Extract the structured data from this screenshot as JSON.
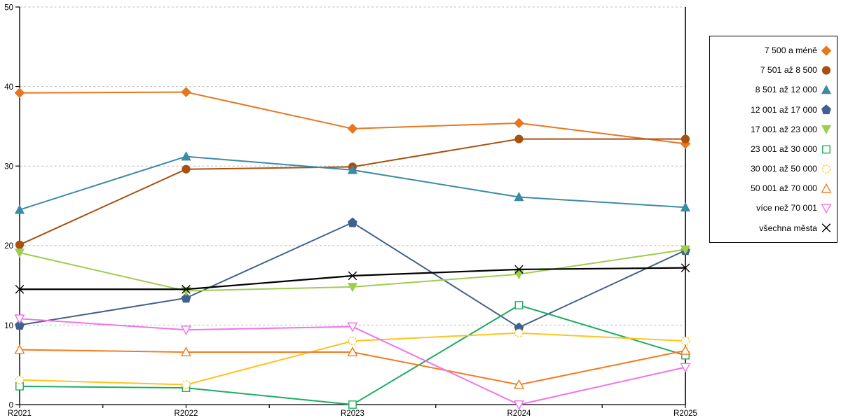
{
  "chart_data": {
    "type": "line",
    "title": "",
    "xlabel": "",
    "ylabel": "",
    "categories": [
      "R2021",
      "R2022",
      "R2023",
      "R2024",
      "R2025"
    ],
    "ylim": [
      0,
      50
    ],
    "yticks": [
      0,
      10,
      20,
      30,
      40,
      50
    ],
    "grid": "horizontal-dashed",
    "legend_position": "right-box",
    "series": [
      {
        "name": "7 500 a méně",
        "color": "#E8761E",
        "marker": "diamond",
        "style": "filled",
        "values": [
          39.2,
          39.3,
          34.7,
          35.4,
          32.8
        ]
      },
      {
        "name": "7 501 až 8 500",
        "color": "#A9500F",
        "marker": "circle",
        "style": "filled",
        "values": [
          20.1,
          29.6,
          29.9,
          33.4,
          33.4
        ]
      },
      {
        "name": "8 501 až 12 000",
        "color": "#3B8BA5",
        "marker": "triangle-up",
        "style": "filled",
        "values": [
          24.5,
          31.2,
          29.5,
          26.1,
          24.8
        ]
      },
      {
        "name": "12 001 až 17 000",
        "color": "#40618F",
        "marker": "pentagon",
        "style": "filled",
        "values": [
          10.0,
          13.4,
          22.9,
          9.7,
          19.4
        ]
      },
      {
        "name": "17 001 až 23 000",
        "color": "#9DCE4F",
        "marker": "triangle-down",
        "style": "filled",
        "values": [
          19.1,
          14.3,
          14.8,
          16.4,
          19.5
        ]
      },
      {
        "name": "23 001 až 30 000",
        "color": "#1CAD60",
        "marker": "square",
        "style": "open",
        "values": [
          2.3,
          2.1,
          0.0,
          12.5,
          6.2
        ]
      },
      {
        "name": "30 001 až 50 000",
        "color": "#FFC31E",
        "marker": "circle-dashed",
        "style": "open",
        "values": [
          3.1,
          2.5,
          8.0,
          9.0,
          8.0
        ]
      },
      {
        "name": "50 001 až 70 000",
        "color": "#F37B20",
        "marker": "triangle-up",
        "style": "open",
        "values": [
          6.9,
          6.6,
          6.6,
          2.5,
          6.8
        ]
      },
      {
        "name": "více než 70 001",
        "color": "#F173E8",
        "marker": "triangle-down",
        "style": "open",
        "values": [
          10.8,
          9.4,
          9.8,
          0.0,
          4.7
        ]
      },
      {
        "name": "všechna města",
        "color": "#000000",
        "marker": "x",
        "style": "line",
        "values": [
          14.5,
          14.5,
          16.2,
          17.0,
          17.2
        ]
      }
    ],
    "colors": {
      "gridline": "#BDBDBD",
      "axis": "#000000",
      "background": "#FFFFFF"
    }
  }
}
